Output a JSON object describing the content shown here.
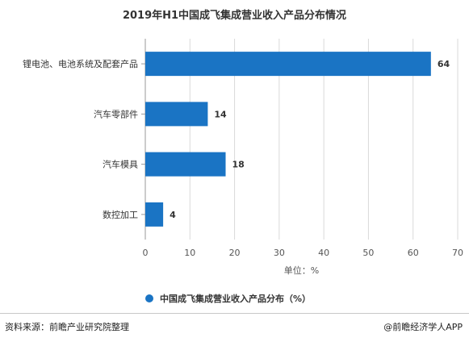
{
  "chart_data": {
    "type": "bar",
    "orientation": "horizontal",
    "title": "2019年H1中国成飞集成营业收入产品分布情况",
    "categories": [
      "锂电池、电池系统及配套产品",
      "汽车零部件",
      "汽车模具",
      "数控加工"
    ],
    "values": [
      64,
      14,
      18,
      4
    ],
    "xlabel": "单位：%",
    "xlim": [
      0,
      70
    ],
    "xticks": [
      0,
      10,
      20,
      30,
      40,
      50,
      60,
      70
    ],
    "grid": true,
    "legend": {
      "label": "中国成飞集成营业收入产品分布（%）",
      "placement": "bottom"
    },
    "color": "#1a74c4"
  },
  "footer": {
    "source": "资料来源：前瞻产业研究院整理",
    "credit": "@前瞻经济学人APP"
  }
}
